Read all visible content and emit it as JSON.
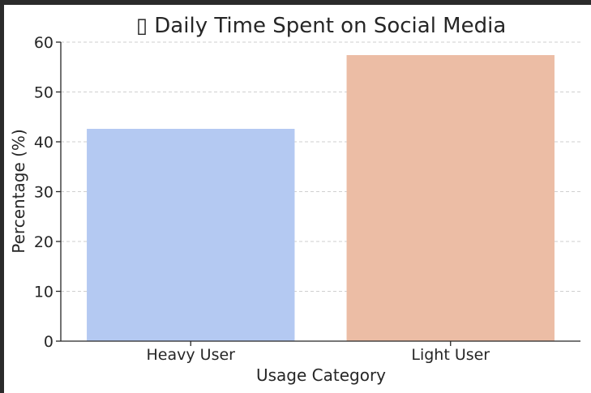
{
  "chart_data": {
    "type": "bar",
    "title": "▯ Daily Time Spent on Social Media",
    "xlabel": "Usage Category",
    "ylabel": "Percentage (%)",
    "categories": [
      "Heavy User",
      "Light User"
    ],
    "values": [
      42.6,
      57.4
    ],
    "colors": [
      "#b4c9f2",
      "#ecbda5"
    ],
    "ylim": [
      0,
      60
    ],
    "yticks": [
      0,
      10,
      20,
      30,
      40,
      50,
      60
    ],
    "grid": true,
    "grid_axis": "y",
    "legend": "none"
  }
}
